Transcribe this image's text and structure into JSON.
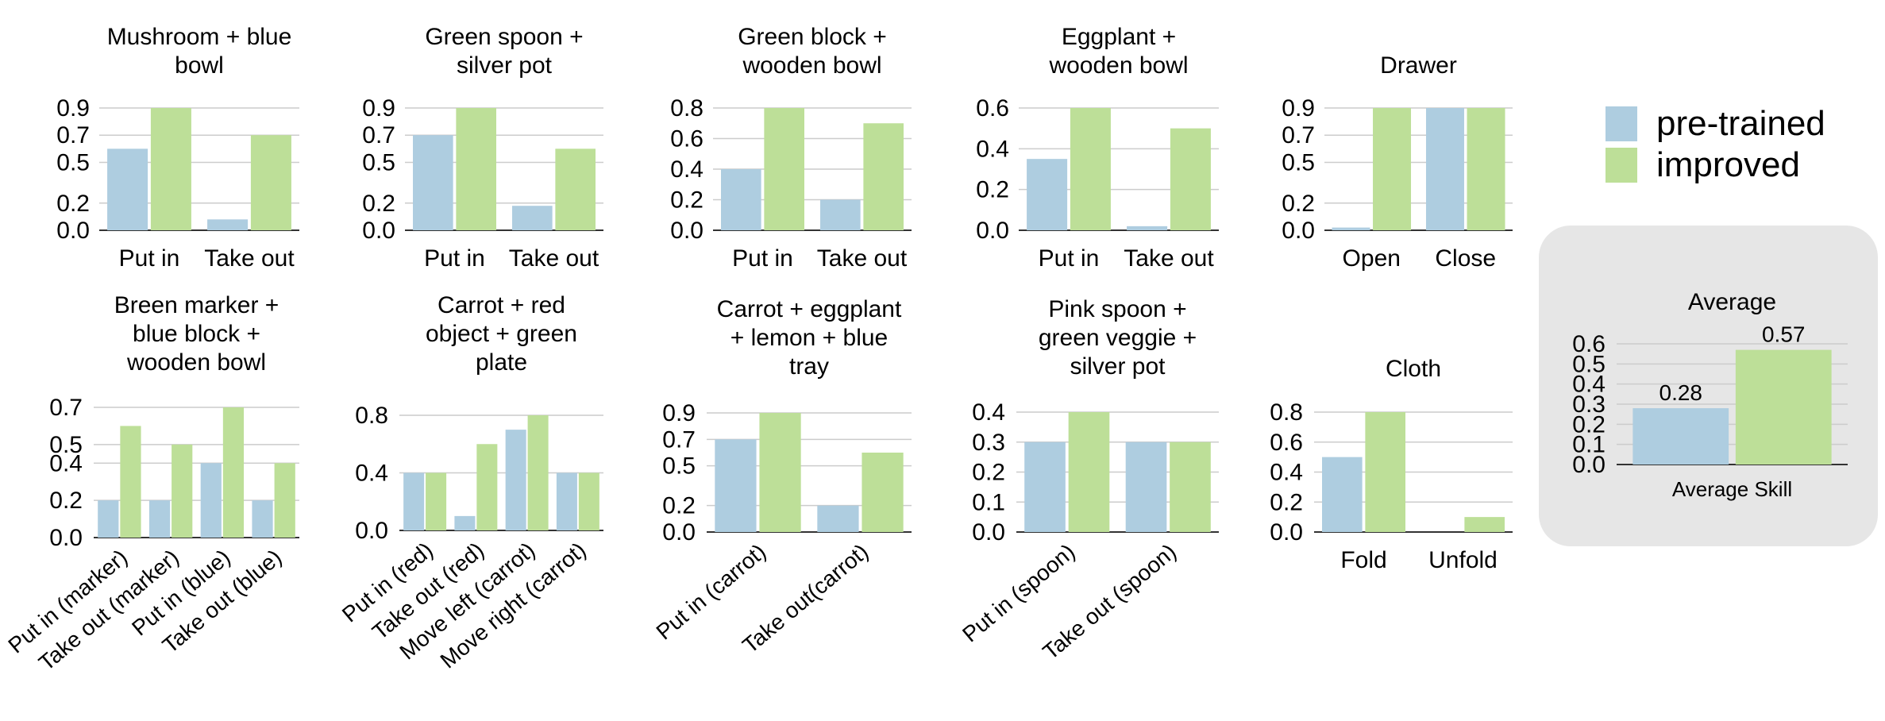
{
  "colors": {
    "pretrained": "#aecde0",
    "improved": "#bddf98",
    "grid": "#cccccc",
    "axis": "#333333",
    "panel": "#e6e6e6"
  },
  "legend": {
    "pretrained": "pre-trained",
    "improved": "improved"
  },
  "chart_data": [
    {
      "type": "bar",
      "title": [
        "Mushroom + blue",
        "bowl"
      ],
      "ticks": [
        0.0,
        0.2,
        0.5,
        0.7,
        0.9
      ],
      "ylim": [
        0,
        0.9
      ],
      "rotate": false,
      "categories": [
        "Put in",
        "Take out"
      ],
      "series": [
        {
          "name": "pre-trained",
          "values": [
            0.6,
            0.08
          ]
        },
        {
          "name": "improved",
          "values": [
            0.9,
            0.7
          ]
        }
      ]
    },
    {
      "type": "bar",
      "title": [
        "Green spoon +",
        "silver pot"
      ],
      "ticks": [
        0.0,
        0.2,
        0.5,
        0.7,
        0.9
      ],
      "ylim": [
        0,
        0.9
      ],
      "rotate": false,
      "categories": [
        "Put in",
        "Take out"
      ],
      "series": [
        {
          "name": "pre-trained",
          "values": [
            0.7,
            0.18
          ]
        },
        {
          "name": "improved",
          "values": [
            0.9,
            0.6
          ]
        }
      ]
    },
    {
      "type": "bar",
      "title": [
        "Green block +",
        "wooden bowl"
      ],
      "ticks": [
        0.0,
        0.2,
        0.4,
        0.6,
        0.8
      ],
      "ylim": [
        0,
        0.8
      ],
      "rotate": false,
      "categories": [
        "Put in",
        "Take out"
      ],
      "series": [
        {
          "name": "pre-trained",
          "values": [
            0.4,
            0.2
          ]
        },
        {
          "name": "improved",
          "values": [
            0.8,
            0.7
          ]
        }
      ]
    },
    {
      "type": "bar",
      "title": [
        "Eggplant +",
        "wooden bowl"
      ],
      "ticks": [
        0.0,
        0.2,
        0.4,
        0.6
      ],
      "ylim": [
        0,
        0.6
      ],
      "rotate": false,
      "categories": [
        "Put in",
        "Take out"
      ],
      "series": [
        {
          "name": "pre-trained",
          "values": [
            0.35,
            0.02
          ]
        },
        {
          "name": "improved",
          "values": [
            0.6,
            0.5
          ]
        }
      ]
    },
    {
      "type": "bar",
      "title": [
        "Drawer"
      ],
      "ticks": [
        0.0,
        0.2,
        0.5,
        0.7,
        0.9
      ],
      "ylim": [
        0,
        0.9
      ],
      "rotate": false,
      "categories": [
        "Open",
        "Close"
      ],
      "series": [
        {
          "name": "pre-trained",
          "values": [
            0.02,
            0.9
          ]
        },
        {
          "name": "improved",
          "values": [
            0.9,
            0.9
          ]
        }
      ]
    },
    {
      "type": "bar",
      "title": [
        "Breen marker +",
        "blue block +",
        "wooden bowl"
      ],
      "ticks": [
        0.0,
        0.2,
        0.4,
        0.5,
        0.7
      ],
      "ylim": [
        0,
        0.7
      ],
      "rotate": true,
      "categories": [
        "Put in (marker)",
        "Take out (marker)",
        "Put in (blue)",
        "Take out (blue)"
      ],
      "series": [
        {
          "name": "pre-trained",
          "values": [
            0.2,
            0.2,
            0.4,
            0.2
          ]
        },
        {
          "name": "improved",
          "values": [
            0.6,
            0.5,
            0.7,
            0.4
          ]
        }
      ]
    },
    {
      "type": "bar",
      "title": [
        "Carrot + red",
        "object + green",
        "plate"
      ],
      "ticks": [
        0.0,
        0.4,
        0.8
      ],
      "ylim": [
        0,
        0.8
      ],
      "rotate": true,
      "categories": [
        "Put in (red)",
        "Take out (red)",
        "Move left (carrot)",
        "Move right (carrot)"
      ],
      "series": [
        {
          "name": "pre-trained",
          "values": [
            0.4,
            0.1,
            0.7,
            0.4
          ]
        },
        {
          "name": "improved",
          "values": [
            0.4,
            0.6,
            0.8,
            0.4
          ]
        }
      ]
    },
    {
      "type": "bar",
      "title": [
        "Carrot + eggplant",
        "+ lemon + blue",
        "tray"
      ],
      "ticks": [
        0.0,
        0.2,
        0.5,
        0.7,
        0.9
      ],
      "ylim": [
        0,
        0.9
      ],
      "rotate": true,
      "categories": [
        "Put in (carrot)",
        "Take out(carrot)"
      ],
      "series": [
        {
          "name": "pre-trained",
          "values": [
            0.7,
            0.2
          ]
        },
        {
          "name": "improved",
          "values": [
            0.9,
            0.6
          ]
        }
      ]
    },
    {
      "type": "bar",
      "title": [
        "Pink spoon +",
        "green veggie +",
        "silver pot"
      ],
      "ticks": [
        0.0,
        0.1,
        0.2,
        0.3,
        0.4
      ],
      "ylim": [
        0,
        0.4
      ],
      "rotate": true,
      "categories": [
        "Put in (spoon)",
        "Take out (spoon)"
      ],
      "series": [
        {
          "name": "pre-trained",
          "values": [
            0.3,
            0.3
          ]
        },
        {
          "name": "improved",
          "values": [
            0.4,
            0.3
          ]
        }
      ]
    },
    {
      "type": "bar",
      "title": [
        "Cloth"
      ],
      "ticks": [
        0.0,
        0.2,
        0.4,
        0.6,
        0.8
      ],
      "ylim": [
        0,
        0.8
      ],
      "rotate": false,
      "categories": [
        "Fold",
        "Unfold"
      ],
      "series": [
        {
          "name": "pre-trained",
          "values": [
            0.5,
            0.0
          ]
        },
        {
          "name": "improved",
          "values": [
            0.8,
            0.1
          ]
        }
      ]
    },
    {
      "type": "bar",
      "title": [
        "Average"
      ],
      "ticks": [
        0.0,
        0.1,
        0.2,
        0.3,
        0.4,
        0.5,
        0.6
      ],
      "ylim": [
        0,
        0.6
      ],
      "rotate": false,
      "categories": [
        "Average Skill"
      ],
      "grouped_single": true,
      "data_labels": [
        "0.28",
        "0.57"
      ],
      "series": [
        {
          "name": "pre-trained",
          "values": [
            0.28
          ]
        },
        {
          "name": "improved",
          "values": [
            0.57
          ]
        }
      ]
    }
  ]
}
